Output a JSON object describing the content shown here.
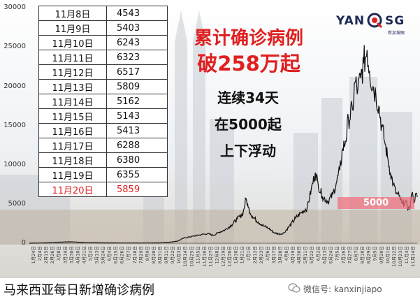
{
  "table": {
    "rows": [
      {
        "date": "11月8日",
        "value": "4543"
      },
      {
        "date": "11月9日",
        "value": "5403"
      },
      {
        "date": "11月10日",
        "value": "6243"
      },
      {
        "date": "11月11日",
        "value": "6323"
      },
      {
        "date": "11月12日",
        "value": "6517"
      },
      {
        "date": "11月13日",
        "value": "5809"
      },
      {
        "date": "11月14日",
        "value": "5162"
      },
      {
        "date": "11月15日",
        "value": "5143"
      },
      {
        "date": "11月16日",
        "value": "5413"
      },
      {
        "date": "11月17日",
        "value": "6288"
      },
      {
        "date": "11月18日",
        "value": "6380"
      },
      {
        "date": "11月19日",
        "value": "6355"
      },
      {
        "date": "11月20日",
        "value": "5859"
      }
    ]
  },
  "logo": {
    "text_left": "YAN",
    "text_right": "SG",
    "subtext": "新加坡眼"
  },
  "headline": {
    "line1": "累计确诊病例",
    "line2": "破258万起"
  },
  "subheadline": {
    "line1": "连续34天",
    "line2": "在5000起",
    "line3": "上下浮动"
  },
  "badge": "5000",
  "caption": "马来西亚每日新增确诊病例",
  "watermark": "微信号: kanxinjiapo",
  "colors": {
    "headline": "#e02020",
    "line": "#111111",
    "highlight": "#e02020",
    "badge": "#f06e78"
  },
  "chart_data": {
    "type": "line",
    "title": "",
    "xlabel": "",
    "ylabel": "",
    "ylim": [
      0,
      30000
    ],
    "yticks": [
      "0",
      "5000",
      "10000",
      "15000",
      "20000",
      "25000",
      "30000"
    ],
    "grid": false,
    "x_start": "2020-01-24",
    "x_end": "2021-11-20",
    "x_tick_labels": [
      "1月24日",
      "2月4日",
      "2月15日",
      "2月26日",
      "3月8日",
      "3月19日",
      "3月30日",
      "4月10日",
      "4月21日",
      "5月2日",
      "5月13日",
      "5月24日",
      "6月4日",
      "6月15日",
      "6月26日",
      "7月7日",
      "7月18日",
      "7月29日",
      "8月9日",
      "8月20日",
      "8月31日",
      "9月11日",
      "9月22日",
      "10月3日",
      "10月14日",
      "10月25日",
      "11月5日",
      "11月16日",
      "11月27日",
      "12月8日",
      "12月19日",
      "12月30日",
      "1月10日",
      "1月21日",
      "2月1日",
      "2月12日",
      "2月23日",
      "3月6日",
      "3月17日",
      "3月28日",
      "4月8日",
      "4月19日",
      "4月30日",
      "5月11日",
      "5月22日",
      "6月2日",
      "6月13日",
      "6月24日",
      "7月5日",
      "7月16日",
      "7月27日",
      "8月7日",
      "8月18日",
      "8月29日",
      "9月9日",
      "9月20日",
      "10月1日",
      "10月12日",
      "10月23日",
      "11月3日",
      "11月14日"
    ],
    "series": [
      {
        "points": [
          [
            "2020-01-24",
            0
          ],
          [
            "2020-03-01",
            50
          ],
          [
            "2020-03-20",
            150
          ],
          [
            "2020-04-05",
            180
          ],
          [
            "2020-05-01",
            60
          ],
          [
            "2020-06-01",
            40
          ],
          [
            "2020-08-01",
            20
          ],
          [
            "2020-09-05",
            40
          ],
          [
            "2020-09-20",
            120
          ],
          [
            "2020-10-05",
            280
          ],
          [
            "2020-10-15",
            650
          ],
          [
            "2020-11-01",
            900
          ],
          [
            "2020-11-15",
            1100
          ],
          [
            "2020-11-25",
            1200
          ],
          [
            "2020-12-05",
            1000
          ],
          [
            "2020-12-15",
            1400
          ],
          [
            "2020-12-25",
            1700
          ],
          [
            "2021-01-05",
            2300
          ],
          [
            "2021-01-15",
            3100
          ],
          [
            "2021-01-25",
            3800
          ],
          [
            "2021-01-30",
            5700
          ],
          [
            "2021-02-03",
            4500
          ],
          [
            "2021-02-10",
            3400
          ],
          [
            "2021-02-20",
            2700
          ],
          [
            "2021-03-01",
            2200
          ],
          [
            "2021-03-10",
            1900
          ],
          [
            "2021-03-20",
            1300
          ],
          [
            "2021-03-30",
            1150
          ],
          [
            "2021-04-05",
            1300
          ],
          [
            "2021-04-15",
            2200
          ],
          [
            "2021-04-25",
            3200
          ],
          [
            "2021-05-05",
            3900
          ],
          [
            "2021-05-15",
            4500
          ],
          [
            "2021-05-22",
            6800
          ],
          [
            "2021-05-29",
            9000
          ],
          [
            "2021-06-03",
            7500
          ],
          [
            "2021-06-10",
            6000
          ],
          [
            "2021-06-20",
            5300
          ],
          [
            "2021-06-28",
            6200
          ],
          [
            "2021-07-05",
            7900
          ],
          [
            "2021-07-10",
            9300
          ],
          [
            "2021-07-15",
            12000
          ],
          [
            "2021-07-20",
            13000
          ],
          [
            "2021-07-25",
            15800
          ],
          [
            "2021-08-01",
            17000
          ],
          [
            "2021-08-05",
            20500
          ],
          [
            "2021-08-10",
            19500
          ],
          [
            "2021-08-15",
            21000
          ],
          [
            "2021-08-20",
            22900
          ],
          [
            "2021-08-26",
            24600
          ],
          [
            "2021-08-30",
            22000
          ],
          [
            "2021-09-05",
            20000
          ],
          [
            "2021-09-10",
            19000
          ],
          [
            "2021-09-15",
            17500
          ],
          [
            "2021-09-20",
            15000
          ],
          [
            "2021-09-25",
            13000
          ],
          [
            "2021-09-30",
            11000
          ],
          [
            "2021-10-05",
            9000
          ],
          [
            "2021-10-10",
            7500
          ],
          [
            "2021-10-15",
            6300
          ],
          [
            "2021-10-20",
            6000
          ],
          [
            "2021-10-25",
            5000
          ],
          [
            "2021-10-30",
            5300
          ],
          [
            "2021-11-05",
            4500
          ],
          [
            "2021-11-08",
            4543
          ],
          [
            "2021-11-09",
            5403
          ],
          [
            "2021-11-10",
            6243
          ],
          [
            "2021-11-11",
            6323
          ],
          [
            "2021-11-12",
            6517
          ],
          [
            "2021-11-13",
            5809
          ],
          [
            "2021-11-14",
            5162
          ],
          [
            "2021-11-15",
            5143
          ],
          [
            "2021-11-16",
            5413
          ],
          [
            "2021-11-17",
            6288
          ],
          [
            "2021-11-18",
            6380
          ],
          [
            "2021-11-19",
            6355
          ],
          [
            "2021-11-20",
            5859
          ]
        ]
      }
    ],
    "reference_line": {
      "value": 5000
    }
  }
}
